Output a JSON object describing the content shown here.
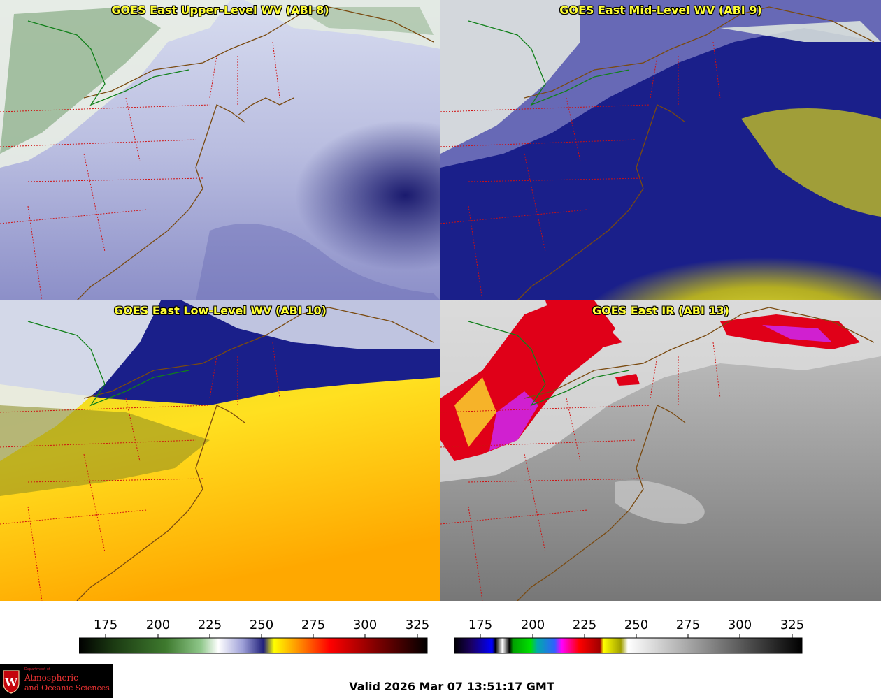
{
  "panels": [
    {
      "title": "GOES East Upper-Level WV (ABI 8)"
    },
    {
      "title": "GOES East Mid-Level WV (ABI 9)"
    },
    {
      "title": "GOES East Low-Level WV (ABI 10)"
    },
    {
      "title": "GOES East IR (ABI 13)"
    }
  ],
  "colorbar_left": {
    "ticks": [
      "175",
      "200",
      "225",
      "250",
      "275",
      "300",
      "325"
    ],
    "colors": [
      "#000000",
      "#1b3a12",
      "#3e7a2e",
      "#8fc78a",
      "#ffffff",
      "#9ea0d8",
      "#20207a",
      "#ffff00",
      "#ffa000",
      "#ff0000",
      "#7a0000",
      "#000000"
    ]
  },
  "colorbar_right": {
    "ticks": [
      "175",
      "200",
      "225",
      "250",
      "275",
      "300",
      "325"
    ],
    "colors": [
      "#000000",
      "#1a0060",
      "#0000ff",
      "#ffffff",
      "#00a000",
      "#00e000",
      "#00aaaa",
      "#ff00ff",
      "#ff0000",
      "#ffff00",
      "#ffffff",
      "#000000"
    ]
  },
  "logo": {
    "line1": "Department of",
    "line2": "Atmospheric",
    "line3": "and Oceanic Sciences"
  },
  "valid_time": "Valid 2026 Mar 07 13:51:17 GMT"
}
